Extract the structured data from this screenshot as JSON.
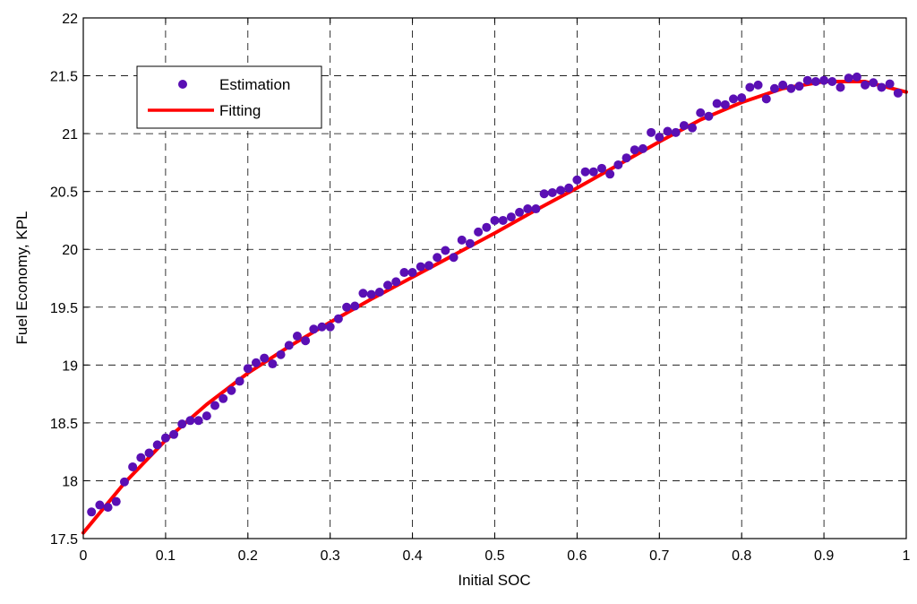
{
  "chart_data": {
    "type": "scatter",
    "title": "",
    "xlabel": "Initial SOC",
    "ylabel": "Fuel Economy, KPL",
    "xlim": [
      0,
      1
    ],
    "ylim": [
      17.5,
      22
    ],
    "x_ticks": [
      "0",
      "0.1",
      "0.2",
      "0.3",
      "0.4",
      "0.5",
      "0.6",
      "0.7",
      "0.8",
      "0.9",
      "1"
    ],
    "y_ticks": [
      "17.5",
      "18",
      "18.5",
      "19",
      "19.5",
      "20",
      "20.5",
      "21",
      "21.5",
      "22"
    ],
    "grid": true,
    "legend_position": "top-left",
    "series": [
      {
        "name": "Estimation",
        "kind": "scatter",
        "color": "#5a0fb4",
        "x": [
          0.01,
          0.02,
          0.03,
          0.04,
          0.05,
          0.06,
          0.07,
          0.08,
          0.09,
          0.1,
          0.11,
          0.12,
          0.13,
          0.14,
          0.15,
          0.16,
          0.17,
          0.18,
          0.19,
          0.2,
          0.21,
          0.22,
          0.23,
          0.24,
          0.25,
          0.26,
          0.27,
          0.28,
          0.29,
          0.3,
          0.31,
          0.32,
          0.33,
          0.34,
          0.35,
          0.36,
          0.37,
          0.38,
          0.39,
          0.4,
          0.41,
          0.42,
          0.43,
          0.44,
          0.45,
          0.46,
          0.47,
          0.48,
          0.49,
          0.5,
          0.51,
          0.52,
          0.53,
          0.54,
          0.55,
          0.56,
          0.57,
          0.58,
          0.59,
          0.6,
          0.61,
          0.62,
          0.63,
          0.64,
          0.65,
          0.66,
          0.67,
          0.68,
          0.69,
          0.7,
          0.71,
          0.72,
          0.73,
          0.74,
          0.75,
          0.76,
          0.77,
          0.78,
          0.79,
          0.8,
          0.81,
          0.82,
          0.83,
          0.84,
          0.85,
          0.86,
          0.87,
          0.88,
          0.89,
          0.9,
          0.91,
          0.92,
          0.93,
          0.94,
          0.95,
          0.96,
          0.97,
          0.98,
          0.99
        ],
        "y": [
          17.73,
          17.79,
          17.77,
          17.82,
          17.99,
          18.12,
          18.2,
          18.24,
          18.31,
          18.37,
          18.4,
          18.49,
          18.52,
          18.52,
          18.56,
          18.65,
          18.71,
          18.78,
          18.86,
          18.97,
          19.02,
          19.06,
          19.01,
          19.09,
          19.17,
          19.25,
          19.21,
          19.31,
          19.33,
          19.33,
          19.4,
          19.5,
          19.51,
          19.62,
          19.61,
          19.63,
          19.69,
          19.72,
          19.8,
          19.8,
          19.85,
          19.86,
          19.93,
          19.99,
          19.93,
          20.08,
          20.05,
          20.15,
          20.19,
          20.25,
          20.25,
          20.28,
          20.32,
          20.35,
          20.35,
          20.48,
          20.49,
          20.51,
          20.53,
          20.6,
          20.67,
          20.67,
          20.7,
          20.65,
          20.73,
          20.79,
          20.86,
          20.87,
          21.01,
          20.97,
          21.02,
          21.01,
          21.07,
          21.05,
          21.18,
          21.15,
          21.26,
          21.25,
          21.3,
          21.31,
          21.4,
          21.42,
          21.3,
          21.39,
          21.42,
          21.39,
          21.41,
          21.46,
          21.45,
          21.46,
          21.45,
          21.4,
          21.48,
          21.49,
          21.42,
          21.44,
          21.4,
          21.43,
          21.35
        ]
      },
      {
        "name": "Fitting",
        "kind": "line",
        "color": "#ff0000",
        "x": [
          0,
          0.05,
          0.1,
          0.15,
          0.2,
          0.25,
          0.3,
          0.35,
          0.4,
          0.45,
          0.5,
          0.55,
          0.6,
          0.65,
          0.7,
          0.75,
          0.8,
          0.85,
          0.9,
          0.95,
          1.0
        ],
        "y": [
          17.55,
          17.98,
          18.35,
          18.66,
          18.93,
          19.16,
          19.37,
          19.57,
          19.76,
          19.95,
          20.14,
          20.34,
          20.53,
          20.73,
          20.93,
          21.12,
          21.27,
          21.39,
          21.45,
          21.45,
          21.36
        ]
      }
    ]
  }
}
